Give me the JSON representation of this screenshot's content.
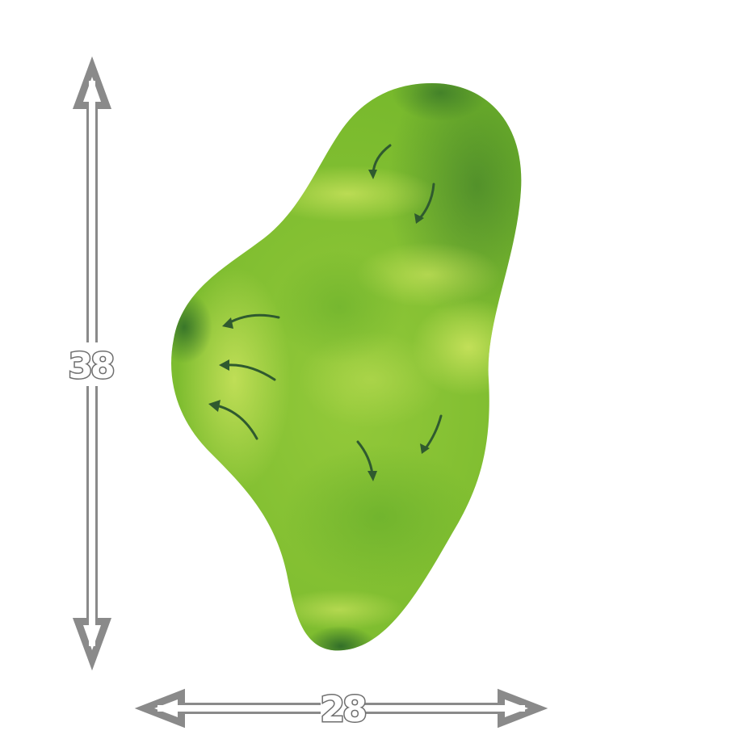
{
  "green": {
    "depth": "38",
    "width": "28"
  },
  "colors": {
    "green_base": "#7cbf2a",
    "green_light": "#c6e05c",
    "green_dark": "#2f6f2a",
    "slope_arrow": "#2f5a2f",
    "dimension_line": "#8a8a8a"
  },
  "slope_arrows": [
    {
      "name": "slope-arrow-top-1"
    },
    {
      "name": "slope-arrow-top-2"
    },
    {
      "name": "slope-arrow-left-1"
    },
    {
      "name": "slope-arrow-left-2"
    },
    {
      "name": "slope-arrow-left-3"
    },
    {
      "name": "slope-arrow-mid-1"
    },
    {
      "name": "slope-arrow-mid-2"
    }
  ]
}
